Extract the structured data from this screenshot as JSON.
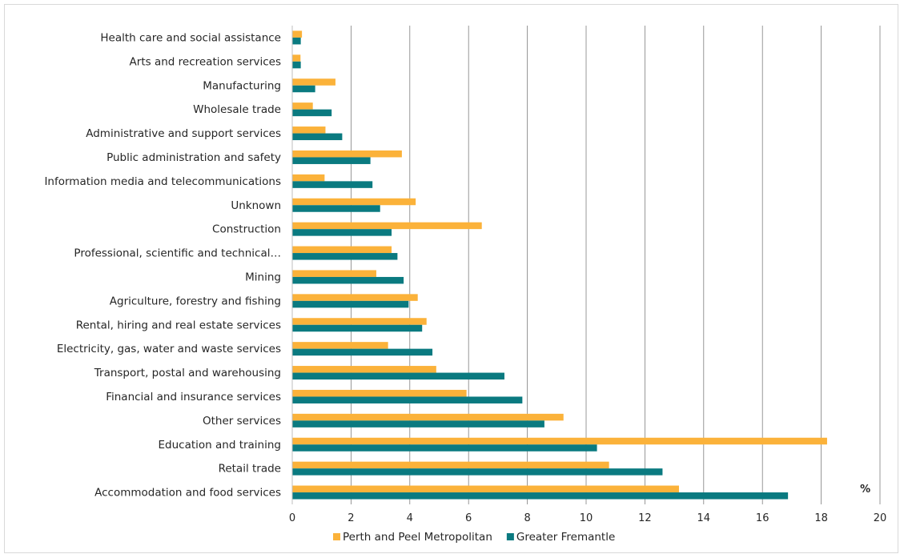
{
  "chart_data": {
    "type": "bar",
    "orientation": "horizontal",
    "unit_label": "%",
    "categories": [
      "Health care and social assistance",
      "Arts and recreation services",
      "Manufacturing",
      "Wholesale trade",
      "Administrative and support services",
      "Public administration and safety",
      "Information media and telecommunications",
      "Unknown",
      "Construction",
      "Professional, scientific and technical…",
      "Mining",
      "Agriculture, forestry and fishing",
      "Rental, hiring and real estate services",
      "Electricity, gas, water and waste services",
      "Transport, postal and warehousing",
      "Financial and insurance services",
      "Other services",
      "Education and training",
      "Retail trade",
      "Accommodation and food services"
    ],
    "series": [
      {
        "name": "Perth and Peel Metropolitan",
        "color": "#fbb23a",
        "values": [
          0.33,
          0.28,
          1.47,
          0.7,
          1.13,
          3.73,
          1.1,
          4.2,
          6.45,
          3.38,
          2.86,
          4.27,
          4.57,
          3.26,
          4.9,
          5.93,
          9.23,
          18.2,
          10.78,
          13.16
        ]
      },
      {
        "name": "Greater Fremantle",
        "color": "#0a7a80",
        "values": [
          0.29,
          0.29,
          0.78,
          1.34,
          1.7,
          2.66,
          2.73,
          2.99,
          3.38,
          3.58,
          3.79,
          3.96,
          4.42,
          4.77,
          7.22,
          7.83,
          8.58,
          10.37,
          12.6,
          16.87
        ]
      }
    ],
    "xlim": [
      0,
      20
    ],
    "xticks": [
      "0",
      "2",
      "4",
      "6",
      "8",
      "10",
      "12",
      "14",
      "16",
      "18",
      "20"
    ],
    "grid": true,
    "legend_position": "bottom"
  }
}
